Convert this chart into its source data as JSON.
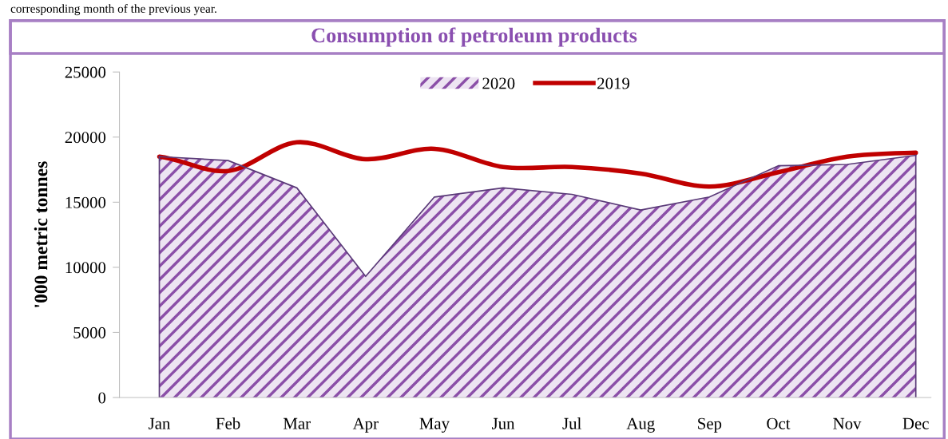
{
  "chart_data": {
    "type": "area",
    "title": "Consumption of petroleum products",
    "ylabel": "'000 metric tonnes",
    "annotations": [
      "corresponding month of the previous year."
    ],
    "categories": [
      "Jan",
      "Feb",
      "Mar",
      "Apr",
      "May",
      "Jun",
      "Jul",
      "Aug",
      "Sep",
      "Oct",
      "Nov",
      "Dec"
    ],
    "series": [
      {
        "name": "2020",
        "color": "#8b4fa8",
        "values": [
          18500,
          18200,
          16100,
          9300,
          15400,
          16100,
          15600,
          14400,
          15400,
          17800,
          17900,
          18600
        ]
      },
      {
        "name": "2019",
        "type": "line",
        "color": "#c00000",
        "values": [
          18500,
          17400,
          19600,
          18300,
          19100,
          17700,
          17700,
          17200,
          16200,
          17300,
          18500,
          18800
        ]
      }
    ],
    "ylim": [
      0,
      25000
    ],
    "yticks": [
      0,
      5000,
      10000,
      15000,
      20000,
      25000
    ],
    "grid": false,
    "legend": "top",
    "marker": "none",
    "line_style": "solid"
  }
}
